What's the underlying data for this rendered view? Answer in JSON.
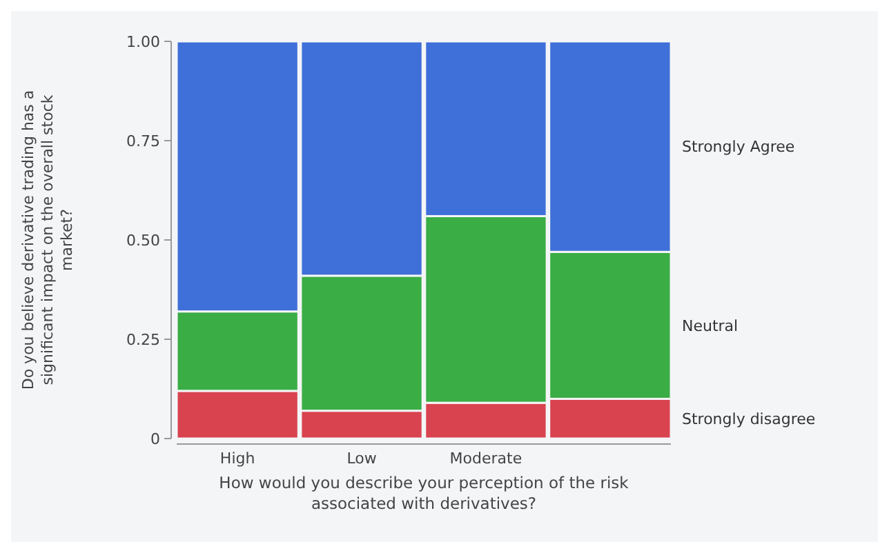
{
  "chart_data": {
    "type": "bar",
    "stacked": true,
    "xlabel": "How would you describe your perception of the risk associated with derivatives?",
    "ylabel": "Do you believe derivative trading has a significant impact on the overall stock market?",
    "categories": [
      "High",
      "Low",
      "Moderate",
      null
    ],
    "series": [
      {
        "name": "Strongly disagree",
        "color": "#d8434f",
        "values": [
          0.12,
          0.07,
          0.09,
          0.1
        ]
      },
      {
        "name": "Neutral",
        "color": "#3aad45",
        "values": [
          0.2,
          0.34,
          0.47,
          0.37
        ]
      },
      {
        "name": "Strongly Agree",
        "color": "#3f6fd8",
        "values": [
          0.68,
          0.59,
          0.44,
          0.53
        ]
      }
    ],
    "ylim": [
      0,
      1
    ],
    "yticks": [
      0,
      {
        "value": 0.25,
        "label": "0.25"
      },
      {
        "value": 0.5,
        "label": "0.50"
      },
      {
        "value": 0.75,
        "label": "0.75"
      },
      {
        "value": 1,
        "label": "1.00"
      }
    ],
    "legend": "right",
    "grid": false
  }
}
